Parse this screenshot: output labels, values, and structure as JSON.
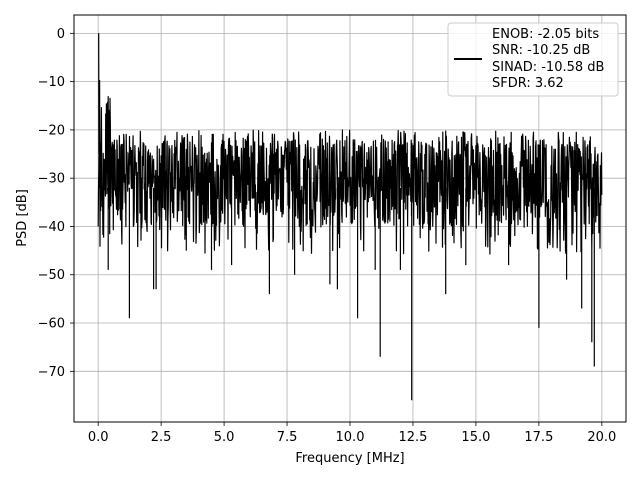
{
  "colors": {
    "trace": "#000000",
    "grid": "#b0b0b0",
    "axes": "#000000",
    "background": "#ffffff",
    "legend_border": "#cccccc"
  },
  "chart_data": {
    "type": "line",
    "xlabel": "Frequency [MHz]",
    "ylabel": "PSD [dB]",
    "xlim": [
      -0.96,
      20.96
    ],
    "ylim": [
      -80.5,
      3.8
    ],
    "grid": true,
    "legend_position": "top-right",
    "xticks": [
      0.0,
      2.5,
      5.0,
      7.5,
      10.0,
      12.5,
      15.0,
      17.5,
      20.0
    ],
    "xtick_labels": [
      "0.0",
      "2.5",
      "5.0",
      "7.5",
      "10.0",
      "12.5",
      "15.0",
      "17.5",
      "20.0"
    ],
    "yticks": [
      0,
      -10,
      -20,
      -30,
      -40,
      -50,
      -60,
      -70
    ],
    "ytick_labels": [
      "0",
      "−10",
      "−20",
      "−30",
      "−40",
      "−50",
      "−60",
      "−70"
    ],
    "legend_lines": [
      "ENOB: -2.05 bits",
      "SNR: -10.25 dB",
      "SINAD: -10.58 dB",
      "SFDR: 3.62"
    ],
    "series": [
      {
        "noise_band_upper_db": -22,
        "noise_band_lower_db": -40,
        "noise_center_db": -30,
        "envelope_points": [
          [
            0.0,
            -8
          ],
          [
            0.02,
            0
          ],
          [
            0.05,
            -31
          ],
          [
            0.08,
            -5
          ],
          [
            0.12,
            -22
          ],
          [
            0.15,
            -13
          ],
          [
            0.2,
            -36
          ],
          [
            0.25,
            -15
          ],
          [
            0.35,
            -18
          ],
          [
            0.4,
            -49
          ],
          [
            0.5,
            -17
          ],
          [
            0.7,
            -20
          ],
          [
            1.0,
            -19
          ],
          [
            1.24,
            -59
          ],
          [
            1.4,
            -53
          ],
          [
            2.2,
            -53
          ],
          [
            2.35,
            -53
          ],
          [
            2.5,
            -18
          ],
          [
            3.0,
            -20
          ],
          [
            3.5,
            -48
          ],
          [
            4.0,
            -20
          ],
          [
            4.5,
            -49
          ],
          [
            5.0,
            -21
          ],
          [
            5.3,
            -48
          ],
          [
            6.0,
            -21
          ],
          [
            6.8,
            -54
          ],
          [
            7.0,
            -21
          ],
          [
            8.0,
            -54
          ],
          [
            9.0,
            -21
          ],
          [
            9.5,
            -53
          ],
          [
            10.0,
            -20
          ],
          [
            10.3,
            -59
          ],
          [
            11.0,
            -49
          ],
          [
            11.2,
            -67
          ],
          [
            12.0,
            -49
          ],
          [
            12.45,
            -76
          ],
          [
            13.0,
            -22
          ],
          [
            13.8,
            -54
          ],
          [
            14.5,
            -48
          ],
          [
            15.5,
            -23
          ],
          [
            16.5,
            -48
          ],
          [
            17.0,
            -19
          ],
          [
            17.5,
            -61
          ],
          [
            18.5,
            -21
          ],
          [
            19.0,
            -52
          ],
          [
            19.5,
            -64
          ],
          [
            19.7,
            -69
          ],
          [
            20.0,
            -20
          ]
        ],
        "spikes": [
          [
            0.05,
            -31
          ],
          [
            0.4,
            -49
          ],
          [
            1.24,
            -59
          ],
          [
            2.2,
            -53
          ],
          [
            2.3,
            -53
          ],
          [
            3.5,
            -45
          ],
          [
            4.5,
            -49
          ],
          [
            5.3,
            -48
          ],
          [
            6.8,
            -54
          ],
          [
            7.8,
            -50
          ],
          [
            9.2,
            -52
          ],
          [
            9.5,
            -53
          ],
          [
            10.3,
            -59
          ],
          [
            11.0,
            -49
          ],
          [
            11.2,
            -67
          ],
          [
            12.0,
            -49
          ],
          [
            12.45,
            -76
          ],
          [
            13.8,
            -54
          ],
          [
            14.6,
            -48
          ],
          [
            16.3,
            -48
          ],
          [
            17.5,
            -61
          ],
          [
            18.6,
            -51
          ],
          [
            19.2,
            -57
          ],
          [
            19.6,
            -64
          ],
          [
            19.7,
            -69
          ]
        ]
      }
    ]
  }
}
